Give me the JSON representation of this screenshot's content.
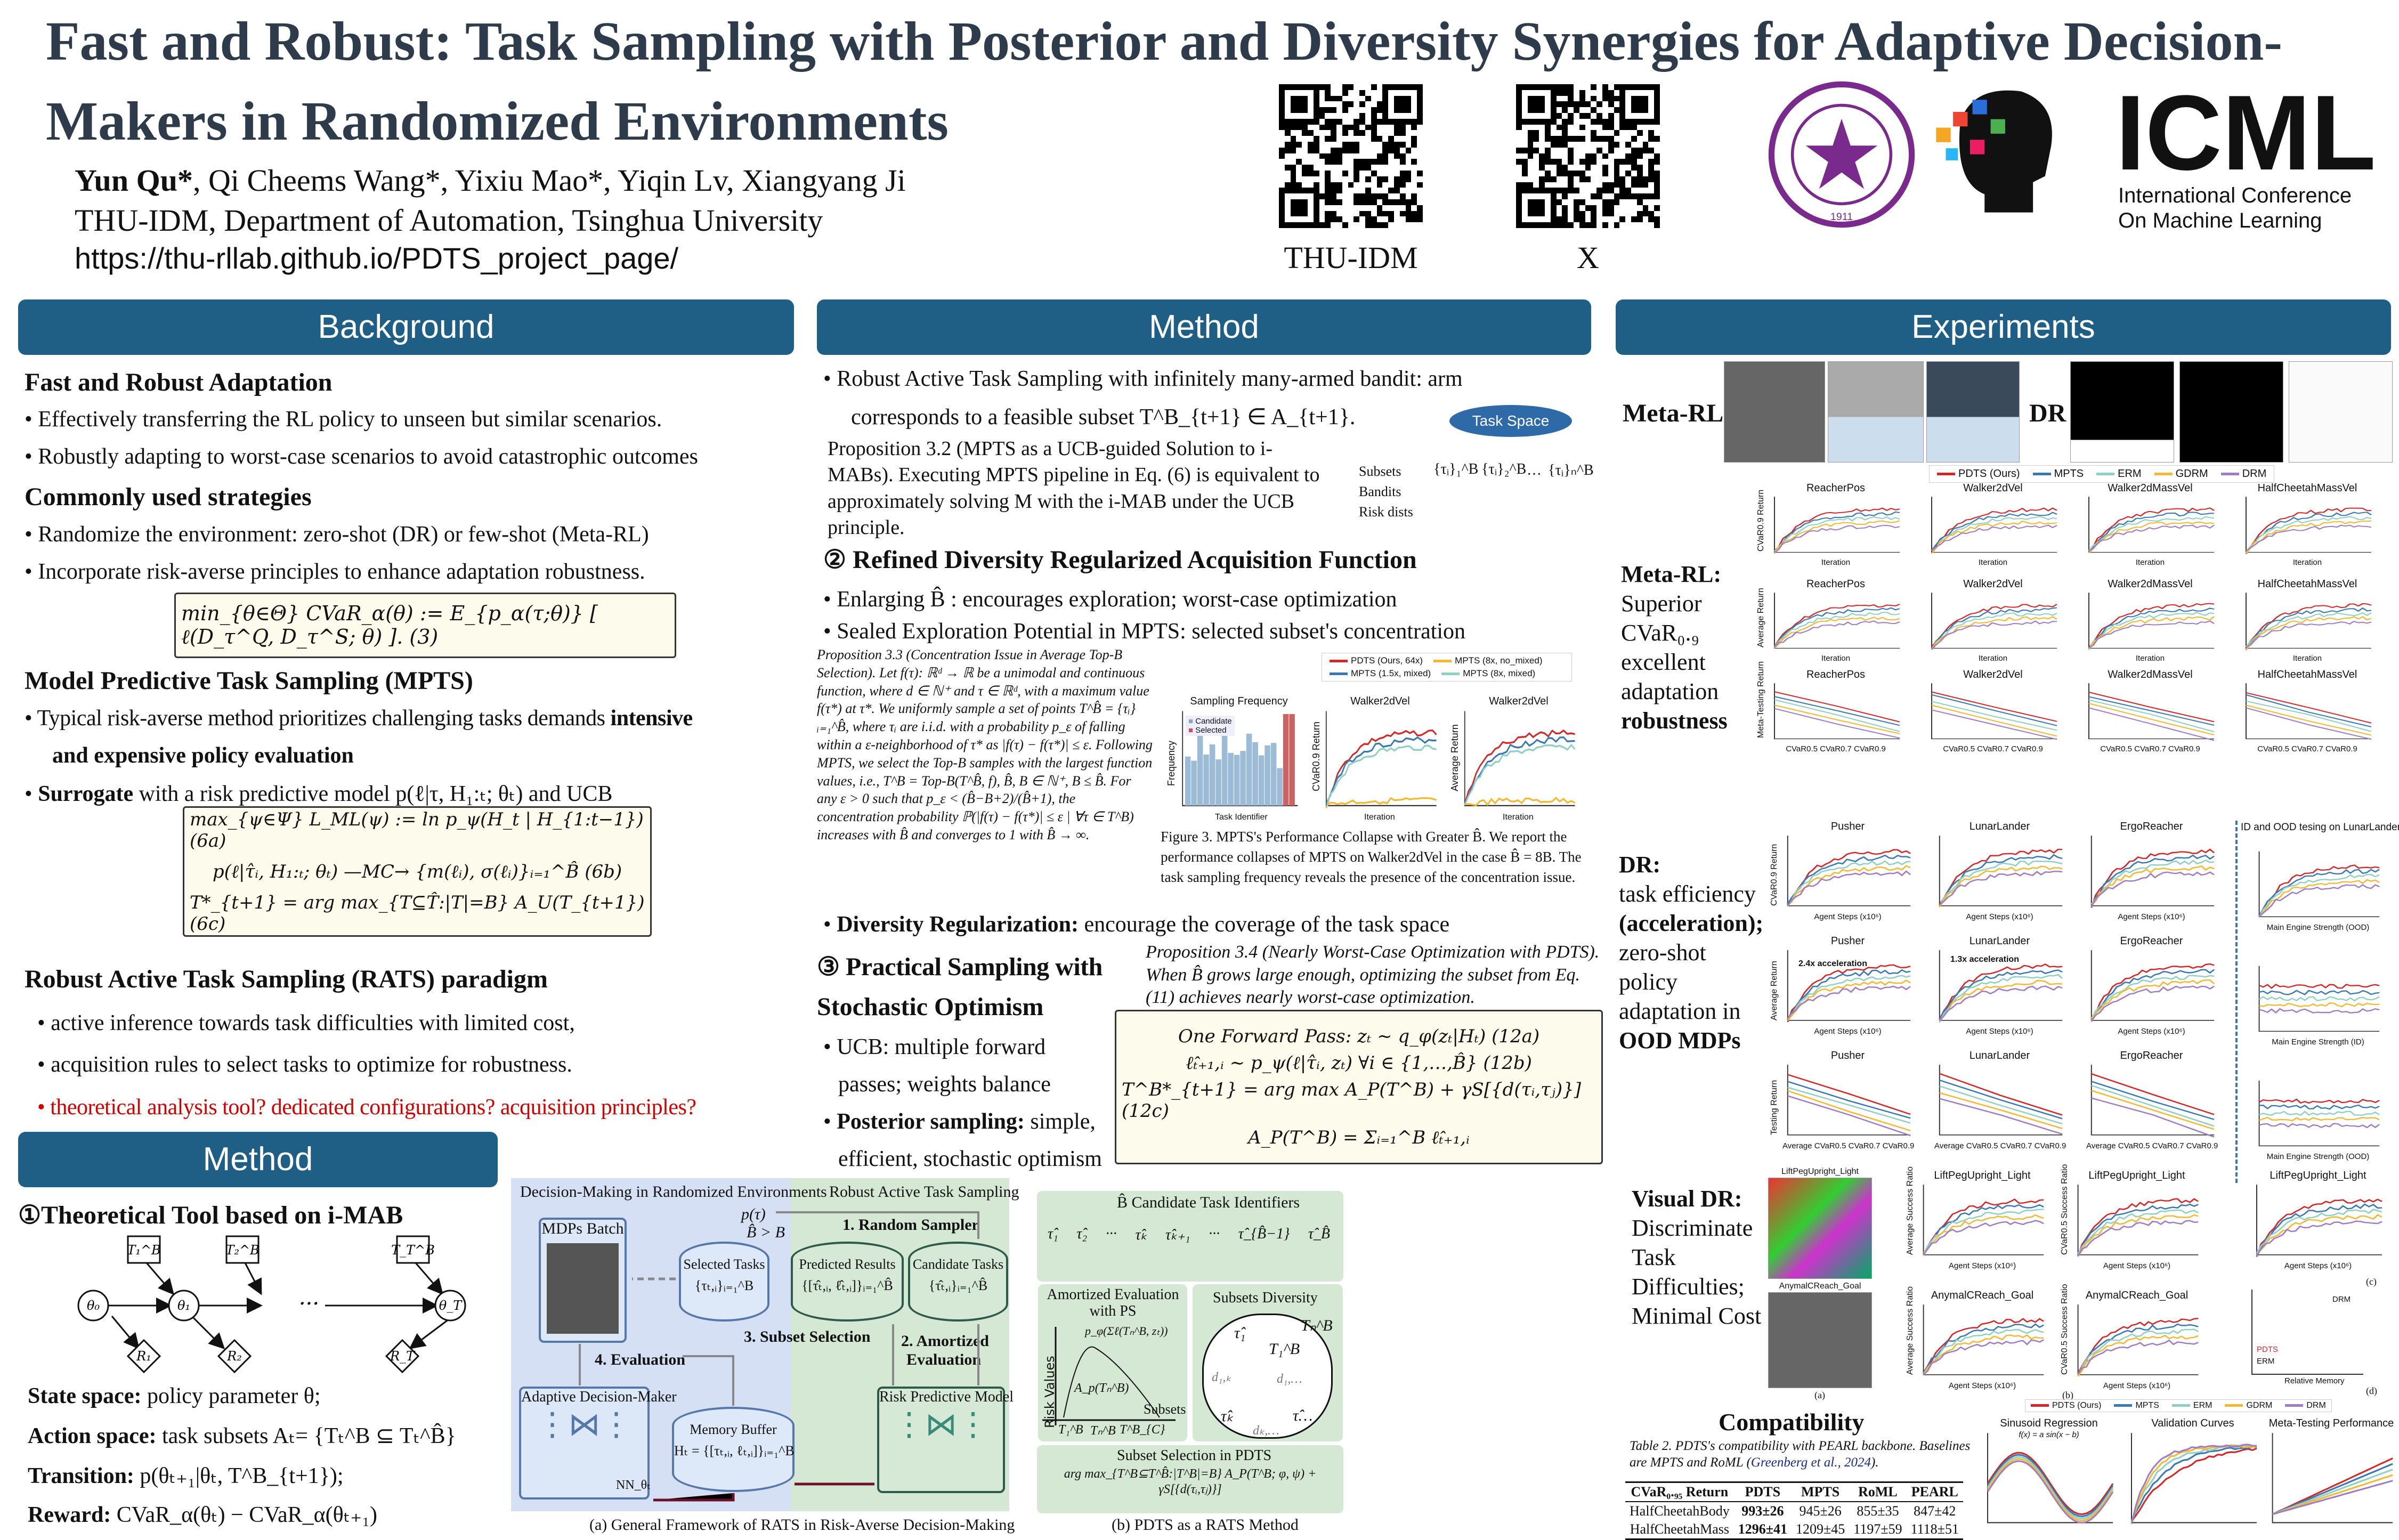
{
  "header": {
    "title_line1": "Fast and Robust: Task Sampling with Posterior and Diversity Synergies for Adaptive Decision-",
    "title_line2": "Makers in Randomized Environments",
    "authors_first": "Yun Qu*",
    "authors_rest": ", Qi Cheems Wang*, Yixiu Mao*, Yiqin Lv, Xiangyang Ji",
    "affiliation": "THU-IDM, Department of Automation, Tsinghua University",
    "url": "https://thu-rllab.github.io/PDTS_project_page/",
    "qr1_label": "THU-IDM",
    "qr2_label": "X",
    "icml_logo": "ICML",
    "icml_sub1": "International Conference",
    "icml_sub2": "On Machine Learning",
    "seal_text": "Tsinghua University 1911"
  },
  "colors": {
    "header_bar": "#1f5e85",
    "title": "#2d3b4b",
    "formula_bg": "#fdfcec",
    "red_text": "#d40000",
    "pdts": "#d62728",
    "mpts": "#3a78b5",
    "erm": "#8fd0c4",
    "gdrm": "#f5b82e",
    "drm": "#a07cc5"
  },
  "background": {
    "heading": "Background",
    "h1": "Fast and Robust Adaptation",
    "b1": "Effectively transferring the RL policy to unseen but similar scenarios.",
    "b2": "Robustly adapting to worst-case scenarios to avoid catastrophic outcomes",
    "h2": "Commonly used strategies",
    "b3": "Randomize the environment: zero-shot (DR) or few-shot (Meta-RL)",
    "b4": "Incorporate risk-averse principles to enhance adaptation robustness.",
    "eq3": "min_{θ∈Θ} CVaR_α(θ) := E_{p_α(τ;θ)} [ ℓ(D_τ^Q, D_τ^S; θ) ].   (3)",
    "h3": "Model Predictive Task Sampling (MPTS)",
    "b5a": "Typical risk-averse method prioritizes challenging tasks demands ",
    "b5b": "intensive",
    "b5c": "and expensive policy evaluation",
    "b6a": "Surrogate",
    "b6b": " with a risk predictive model p(ℓ|τ, H₁:ₜ; θₜ) and UCB",
    "eq6a": "max_{ψ∈Ψ} L_ML(ψ) := ln p_ψ(H_t | H_{1:t−1})   (6a)",
    "eq6b": "p(ℓ|τ̂ᵢ, H₁:ₜ; θₜ) —MC→ {m(ℓᵢ), σ(ℓᵢ)}ᵢ₌₁^B̂   (6b)",
    "eq6c": "T*_{t+1} = arg max_{T⊆T̂:|T|=B} A_U(T_{t+1})   (6c)",
    "h4": "Robust Active Task Sampling (RATS) paradigm",
    "b7": "active inference towards task difficulties with limited cost,",
    "b8": "acquisition rules to select tasks to optimize for robustness.",
    "b9": "theoretical analysis tool? dedicated configurations? acquisition principles?"
  },
  "method_left": {
    "heading": "Method",
    "h1": "①Theoretical Tool based on i-MAB",
    "nodes": [
      "θ₀",
      "θ₁",
      "θ_T",
      "T₁^B",
      "T₂^B",
      "T_T^B",
      "R₁",
      "R₂",
      "R_T"
    ],
    "dots": "···",
    "s1a": "State space:",
    "s1b": " policy parameter θ;",
    "s2a": "Action space:",
    "s2b": " task subsets Aₜ= {Tₜ^B ⊆ Tₜ^B̂}",
    "s3a": "Transition:",
    "s3b": " p(θₜ₊₁|θₜ, T^B_{t+1});",
    "s4a": "Reward:",
    "s4b": " CVaR_α(θₜ) − CVaR_α(θₜ₊₁)"
  },
  "method": {
    "heading": "Method",
    "b1a": "Robust Active Task Sampling with infinitely many-armed bandit: arm",
    "b1b": "corresponds to a feasible subset T^B_{t+1} ∈ A_{t+1}.",
    "p32": "Proposition 3.2 (MPTS as a UCB-guided Solution to i-MABs). Executing MPTS pipeline in Eq. (6) is equivalent to approximately solving M with the i-MAB under the UCB principle.",
    "taskspace": "Task Space",
    "ts_rows": [
      "Subsets",
      "Bandits",
      "Risk dists"
    ],
    "ts_sets": [
      "{τᵢ}₁^B",
      "{τᵢ}₂^B",
      "···",
      "{τᵢ}ₙ^B"
    ],
    "h2": "② Refined Diversity Regularized Acquisition Function",
    "b2": "Enlarging B̂ : encourages exploration; worst-case optimization",
    "b3": "Sealed Exploration Potential in MPTS: selected subset's concentration",
    "p33": "Proposition 3.3 (Concentration Issue in Average Top-B Selection). Let f(τ): ℝᵈ → ℝ be a unimodal and continuous function, where d ∈ ℕ⁺ and τ ∈ ℝᵈ, with a maximum value f(τ*) at τ*. We uniformly sample a set of points T^B̂ = {τᵢ}ᵢ₌₁^B̂, where τᵢ are i.i.d. with a probability p_ε of falling within a ε-neighborhood of τ* as |f(τ) − f(τ*)| ≤ ε. Following MPTS, we select the Top-B samples with the largest function values, i.e., T^B = Top-B(T^B̂, f), B̂, B ∈ ℕ⁺, B ≤ B̂. For any ε > 0 such that p_ε < (B̂−B+2)/(B̂+1), the concentration probability ℙ(|f(τ) − f(τ*)| ≤ ε | ∀τ ∈ T^B) increases with B̂ and converges to 1 with B̂ → ∞.",
    "fig3_legend": [
      "PDTS (Ours, 64x)",
      "MPTS (1.5x, mixed)",
      "MPTS (8x, no_mixed)",
      "MPTS (8x, mixed)"
    ],
    "fig3_panels": [
      {
        "title": "Sampling Frequency",
        "xlabel": "Task Identifier",
        "ylabel": "Frequency",
        "legend": [
          "Candidate",
          "Selected"
        ]
      },
      {
        "title": "Walker2dVel",
        "xlabel": "Iteration",
        "ylabel": "CVaR0.9 Return"
      },
      {
        "title": "Walker2dVel",
        "xlabel": "Iteration",
        "ylabel": "Average Return"
      }
    ],
    "fig3_caption": "Figure 3. MPTS's Performance Collapse with Greater B̂. We report the performance collapses of MPTS on Walker2dVel in the case B̂ = 8B. The task sampling frequency reveals the presence of the concentration issue.",
    "b4a": "Diversity Regularization:",
    "b4b": " encourage the coverage of the task space",
    "p34": "Proposition 3.4 (Nearly Worst-Case Optimization with PDTS). When B̂ grows large enough, optimizing the subset from Eq. (11) achieves nearly worst-case optimization.",
    "h3a": "③ Practical Sampling with",
    "h3b": "Stochastic Optimism",
    "b5a": "UCB: multiple forward",
    "b5b": "passes; weights balance",
    "b6a": "Posterior sampling:",
    "b6b": " simple,",
    "b6c": "efficient, stochastic optimism",
    "eq12a": "One Forward Pass:  zₜ ∼ q_φ(zₜ|Hₜ)   (12a)",
    "eq12b": "ℓ̂ₜ₊₁,ᵢ ∼ p_ψ(ℓ|τ̂ᵢ, zₜ)   ∀i ∈ {1,…,B̂}   (12b)",
    "eq12c": "T^B*_{t+1} = arg max A_P(T^B) + γS[{d(τᵢ,τⱼ)}]   (12c)",
    "eq12d": "A_P(T^B) = Σᵢ₌₁^B ℓ̂ₜ₊₁,ᵢ"
  },
  "framework": {
    "left_title": "Decision-Making in Randomized Environments",
    "mid_title": "Robust Active Task Sampling",
    "mdps": "MDPs Batch",
    "selected": "Selected Tasks",
    "selected_f": "{τₜ,ᵢ}ᵢ₌₁^B",
    "predicted": "Predicted Results",
    "predicted_f": "{[τ̂ₜ,ᵢ, ℓ̂ₜ,ᵢ]}ᵢ₌₁^B̂",
    "candidate": "Candidate Tasks",
    "candidate_f": "{τ̂ₜ,ᵢ}ᵢ₌₁^B̂",
    "ptau": "p(τ)",
    "step1": "1. Random Sampler",
    "bgt": "B̂ > B",
    "step3": "3. Subset Selection",
    "step2a": "2. Amortized",
    "step2b": "Evaluation",
    "step4": "4. Evaluation",
    "adm": "Adaptive Decision-Maker",
    "memory": "Memory Buffer",
    "memory_f": "Hₜ = {[τₜ,ᵢ, ℓₜ,ᵢ]}ᵢ₌₁^B",
    "rpm": "Risk Predictive Model",
    "nn": "NN_θₜ",
    "cap_a": "(a) General Framework of RATS in Risk-Averse Decision-Making",
    "b_candidates": "B̂  Candidate Task Identifiers",
    "b_taus": [
      "τ̂₁",
      "τ̂₂",
      "···",
      "τ̂ₖ",
      "τ̂ₖ₊₁",
      "···",
      "τ̂_{B̂−1}",
      "τ̂_B̂"
    ],
    "amortized": "Amortized Evaluation with PS",
    "risk_values": "Risk Values",
    "subsets": "Subsets",
    "ap_label": "A_p(Tₙ^B)",
    "pphi": "p_φ(Σℓ(Tₙ^B, zₜ))",
    "subset_ticks": [
      "T₁^B",
      "Tₙ^B",
      "T^B_{C}"
    ],
    "diversity": "Subsets Diversity",
    "div_nodes": [
      "τ̂₁",
      "τ̂ₖ",
      "τ̂…",
      "T₁^B",
      "Tₙ^B",
      "d₁,ₖ",
      "d₁,…",
      "dₖ,…"
    ],
    "selection": "Subset Selection in PDTS",
    "selection_f": "arg max_{T^B⊆T^B̂:|T^B|=B}  A_P(T^B; φ, ψ) + γS[{d(τᵢ,τⱼ)}]",
    "cap_b": "(b) PDTS as a RATS Method"
  },
  "experiments": {
    "heading": "Experiments",
    "metarl_label": "Meta-RL",
    "dr_label": "DR",
    "legend": [
      "PDTS (Ours)",
      "MPTS",
      "ERM",
      "GDRM",
      "DRM"
    ],
    "metarl_text": [
      "Meta-RL:",
      "Superior",
      "CVaR₀.₉",
      "excellent",
      "adaptation",
      "robustness"
    ],
    "metarl_cols": [
      "ReacherPos",
      "Walker2dVel",
      "Walker2dMassVel",
      "HalfCheetahMassVel"
    ],
    "metarl_ylabels": [
      "CVaR0.9 Return",
      "Average Return",
      "Meta-Testing Return"
    ],
    "metarl_xlabels": [
      "Iteration",
      "Iteration",
      "CVaR0.5   CVaR0.7   CVaR0.9"
    ],
    "dr_text": [
      "DR:",
      "task efficiency",
      "(acceleration);",
      "zero-shot",
      "policy",
      "adaptation in",
      "OOD MDPs"
    ],
    "dr_cols": [
      "Pusher",
      "LunarLander",
      "ErgoReacher"
    ],
    "dr_ylabels": [
      "CVaR0.9 Return",
      "Average Return",
      "Testing Return"
    ],
    "dr_xlabels": [
      "Agent Steps (x10⁶)",
      "Agent Steps (x10⁶)",
      "Average  CVaR0.5  CVaR0.7  CVaR0.9"
    ],
    "dr_annot": [
      "2.4x acceleration",
      "1.3x acceleration"
    ],
    "dr_ood_title": "ID and OOD tesing on LunarLander",
    "dr_ood_xlabels": [
      "Main Engine Strength (OOD)",
      "Main Engine Strength (ID)",
      "Main Engine Strength (OOD)"
    ],
    "vdr_text": [
      "Visual DR:",
      "Discriminate",
      "Task",
      "Difficulties;",
      "Minimal Cost"
    ],
    "vdr_images": [
      "LiftPegUpright_Light",
      "AnymalCReach_Goal"
    ],
    "vdr_plots": [
      "LiftPegUpright_Light",
      "LiftPegUpright_Light",
      "LiftPegUpright_Light",
      "AnymalCReach_Goal",
      "AnymalCReach_Goal"
    ],
    "vdr_ylabels": [
      "Average Success Ratio",
      "CVaR0.5 Success Ratio"
    ],
    "vdr_xlabel": "Agent Steps (x10⁶)",
    "vdr_d_labels": [
      "DRM",
      "PDTS",
      "ERM"
    ],
    "vdr_d_xlabel": "Relative Memory",
    "vdr_sub": [
      "(a)",
      "(b)",
      "(c)",
      "(d)"
    ],
    "compat_title": "Compatibility",
    "compat_caption_a": "Table 2. PDTS's compatibility with PEARL backbone. Baselines are MPTS and RoML (",
    "compat_cite": "Greenberg et al., 2024",
    "compat_caption_b": ").",
    "table": {
      "headers": [
        "CVaR₀.₉₅ Return",
        "PDTS",
        "MPTS",
        "RoML",
        "PEARL"
      ],
      "rows": [
        [
          "HalfCheetahBody",
          "993±26",
          "945±26",
          "855±35",
          "847±42"
        ],
        [
          "HalfCheetahMass",
          "1296±41",
          "1209±45",
          "1197±59",
          "1118±51"
        ]
      ]
    },
    "small_plots": [
      "Sinusoid Regression",
      "Validation Curves",
      "Meta-Testing Performance"
    ],
    "small_sub": "f(x) = a sin(x − b)"
  }
}
